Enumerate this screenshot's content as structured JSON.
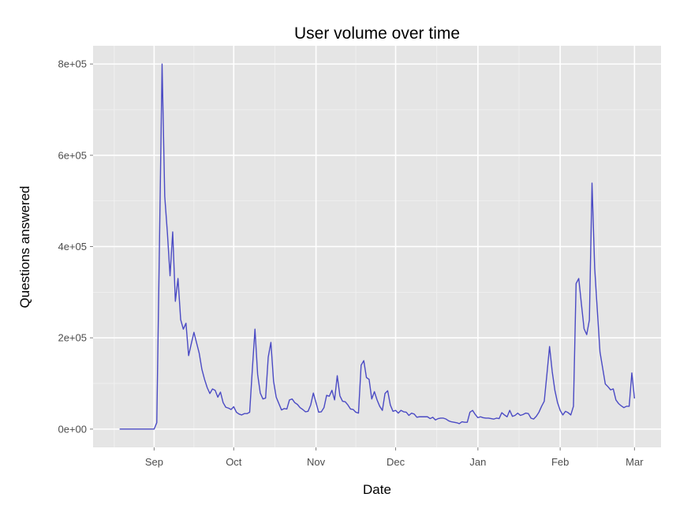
{
  "chart_data": {
    "type": "line",
    "title": "User volume over time",
    "xlabel": "Date",
    "ylabel": "Questions answered",
    "x_tick_labels": [
      "Sep",
      "Oct",
      "Nov",
      "Dec",
      "Jan",
      "Feb",
      "Mar"
    ],
    "x_tick_dates": [
      "09-01",
      "10-01",
      "11-01",
      "12-01",
      "01-01",
      "02-01",
      "03-01"
    ],
    "y_ticks": [
      0,
      200000,
      400000,
      600000,
      800000
    ],
    "y_tick_labels": [
      "0e+00",
      "2e+05",
      "4e+05",
      "6e+05",
      "8e+05"
    ],
    "ylim": [
      -40000,
      840000
    ],
    "xlim": [
      "08-09",
      "03-11"
    ],
    "grid": true,
    "line_color": "#4a4ac4",
    "panel_color": "#e5e5e5",
    "series": [
      {
        "x": [
          "08-19",
          "08-20",
          "08-21",
          "08-22",
          "08-23",
          "08-24",
          "08-25",
          "08-26",
          "08-27",
          "08-28",
          "08-29",
          "08-30",
          "08-31",
          "09-01",
          "09-02",
          "09-03",
          "09-04",
          "09-05",
          "09-06",
          "09-07",
          "09-08",
          "09-09",
          "09-10",
          "09-11",
          "09-12",
          "09-13",
          "09-14",
          "09-15",
          "09-16",
          "09-17",
          "09-18",
          "09-19",
          "09-20",
          "09-21",
          "09-22",
          "09-23",
          "09-24",
          "09-25",
          "09-26",
          "09-27",
          "09-28",
          "09-29",
          "09-30",
          "10-01",
          "10-02",
          "10-03",
          "10-04",
          "10-05",
          "10-06",
          "10-07",
          "10-08",
          "10-09",
          "10-10",
          "10-11",
          "10-12",
          "10-13",
          "10-14",
          "10-15",
          "10-16",
          "10-17",
          "10-18",
          "10-19",
          "10-20",
          "10-21",
          "10-22",
          "10-23",
          "10-24",
          "10-25",
          "10-26",
          "10-27",
          "10-28",
          "10-29",
          "10-30",
          "10-31",
          "11-01",
          "11-02",
          "11-03",
          "11-04",
          "11-05",
          "11-06",
          "11-07",
          "11-08",
          "11-09",
          "11-10",
          "11-11",
          "11-12",
          "11-13",
          "11-14",
          "11-15",
          "11-16",
          "11-17",
          "11-18",
          "11-19",
          "11-20",
          "11-21",
          "11-22",
          "11-23",
          "11-24",
          "11-25",
          "11-26",
          "11-27",
          "11-28",
          "11-29",
          "11-30",
          "12-01",
          "12-02",
          "12-03",
          "12-04",
          "12-05",
          "12-06",
          "12-07",
          "12-08",
          "12-09",
          "12-10",
          "12-11",
          "12-12",
          "12-13",
          "12-14",
          "12-15",
          "12-16",
          "12-17",
          "12-18",
          "12-19",
          "12-20",
          "12-21",
          "12-22",
          "12-23",
          "12-24",
          "12-25",
          "12-26",
          "12-27",
          "12-28",
          "12-29",
          "12-30",
          "12-31",
          "01-01",
          "01-02",
          "01-03",
          "01-04",
          "01-05",
          "01-06",
          "01-07",
          "01-08",
          "01-09",
          "01-10",
          "01-11",
          "01-12",
          "01-13",
          "01-14",
          "01-15",
          "01-16",
          "01-17",
          "01-18",
          "01-19",
          "01-20",
          "01-21",
          "01-22",
          "01-23",
          "01-24",
          "01-25",
          "01-26",
          "01-27",
          "01-28",
          "01-29",
          "01-30",
          "01-31",
          "02-01",
          "02-02",
          "02-03",
          "02-04",
          "02-05",
          "02-06",
          "02-07",
          "02-08",
          "02-09",
          "02-10",
          "02-11",
          "02-12",
          "02-13",
          "02-14",
          "02-15",
          "02-16",
          "02-17",
          "02-18",
          "02-19",
          "02-20",
          "02-21",
          "02-22",
          "02-23",
          "02-24",
          "02-25",
          "02-26",
          "02-27",
          "02-28",
          "03-01"
        ],
        "values": [
          0,
          0,
          0,
          0,
          0,
          0,
          0,
          0,
          0,
          0,
          0,
          0,
          0,
          0,
          14000,
          400000,
          800000,
          510000,
          430000,
          336000,
          432000,
          280000,
          330000,
          240000,
          219000,
          232000,
          161000,
          187000,
          212000,
          189000,
          166000,
          131000,
          109000,
          91000,
          78000,
          88000,
          85000,
          70000,
          81000,
          58000,
          48000,
          46000,
          43000,
          49000,
          37000,
          33000,
          31000,
          34000,
          34000,
          37000,
          130000,
          219000,
          120000,
          79000,
          66000,
          68000,
          158000,
          190000,
          105000,
          70000,
          56000,
          42000,
          45000,
          44000,
          64000,
          66000,
          58000,
          54000,
          47000,
          43000,
          38000,
          39000,
          53000,
          79000,
          58000,
          37000,
          38000,
          47000,
          74000,
          72000,
          85000,
          64000,
          117000,
          73000,
          61000,
          60000,
          53000,
          44000,
          43000,
          37000,
          35000,
          140000,
          150000,
          113000,
          109000,
          66000,
          82000,
          64000,
          50000,
          41000,
          78000,
          84000,
          53000,
          39000,
          41000,
          35000,
          41000,
          38000,
          37000,
          30000,
          35000,
          33000,
          26000,
          27000,
          27000,
          27000,
          27000,
          23000,
          26000,
          20000,
          23000,
          24000,
          24000,
          22000,
          18000,
          16000,
          15000,
          14000,
          12000,
          16000,
          15000,
          15000,
          37000,
          41000,
          32000,
          25000,
          27000,
          25000,
          24000,
          24000,
          23000,
          22000,
          24000,
          23000,
          36000,
          31000,
          27000,
          41000,
          28000,
          30000,
          35000,
          30000,
          32000,
          35000,
          34000,
          24000,
          22000,
          28000,
          37000,
          50000,
          61000,
          120000,
          181000,
          126000,
          85000,
          58000,
          41000,
          31000,
          39000,
          36000,
          31000,
          50000,
          319000,
          330000,
          274000,
          220000,
          207000,
          239000,
          539000,
          353000,
          260000,
          169000,
          134000,
          99000,
          93000,
          86000,
          88000,
          64000,
          56000,
          51000,
          47000,
          50000,
          50000,
          123000,
          67000
        ]
      }
    ]
  }
}
